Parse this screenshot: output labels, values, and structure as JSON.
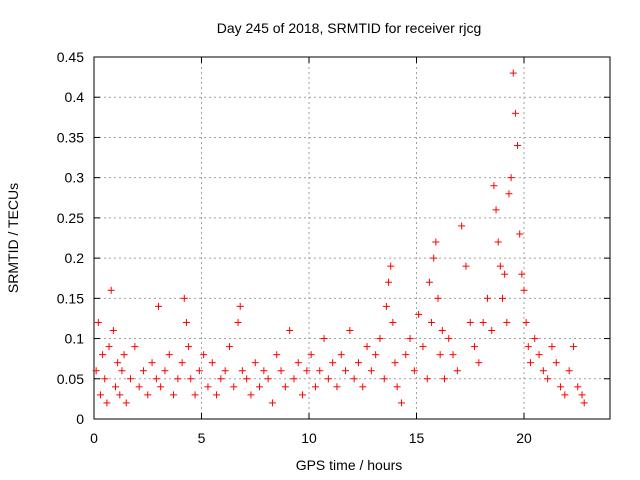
{
  "chart_data": {
    "type": "scatter",
    "title": "Day 245 of 2018, SRMTID for receiver rjcg",
    "xlabel": "GPS time / hours",
    "ylabel": "SRMTID / TECUs",
    "xlim": [
      0,
      24
    ],
    "ylim": [
      0,
      0.45
    ],
    "xticks": [
      0,
      5,
      10,
      15,
      20
    ],
    "xtick_labels": [
      "0",
      "5",
      "10",
      "15",
      "20"
    ],
    "yticks": [
      0,
      0.05,
      0.1,
      0.15,
      0.2,
      0.25,
      0.3,
      0.35,
      0.4,
      0.45
    ],
    "ytick_labels": [
      "0",
      "0.05",
      "0.1",
      "0.15",
      "0.2",
      "0.25",
      "0.3",
      "0.35",
      "0.4",
      "0.45"
    ],
    "grid": true,
    "marker": "+",
    "color": "#ff0000",
    "series": [
      {
        "name": "SRMTID",
        "x": [
          0.1,
          0.2,
          0.3,
          0.4,
          0.5,
          0.6,
          0.7,
          0.8,
          0.9,
          1.0,
          1.1,
          1.2,
          1.3,
          1.4,
          1.5,
          1.7,
          1.9,
          2.1,
          2.3,
          2.5,
          2.7,
          2.9,
          3.0,
          3.1,
          3.3,
          3.5,
          3.7,
          3.9,
          4.1,
          4.2,
          4.3,
          4.4,
          4.5,
          4.7,
          4.9,
          5.1,
          5.3,
          5.5,
          5.7,
          5.9,
          6.1,
          6.3,
          6.5,
          6.7,
          6.8,
          6.9,
          7.1,
          7.3,
          7.5,
          7.7,
          7.9,
          8.1,
          8.3,
          8.5,
          8.7,
          8.9,
          9.1,
          9.3,
          9.5,
          9.7,
          9.9,
          10.1,
          10.3,
          10.5,
          10.7,
          10.9,
          11.1,
          11.3,
          11.5,
          11.7,
          11.9,
          12.1,
          12.3,
          12.5,
          12.7,
          12.9,
          13.1,
          13.3,
          13.5,
          13.6,
          13.7,
          13.8,
          13.9,
          14.0,
          14.1,
          14.3,
          14.5,
          14.7,
          14.9,
          15.1,
          15.3,
          15.5,
          15.6,
          15.7,
          15.8,
          15.9,
          16.0,
          16.1,
          16.2,
          16.3,
          16.5,
          16.7,
          16.9,
          17.1,
          17.3,
          17.5,
          17.7,
          17.9,
          18.1,
          18.3,
          18.5,
          18.6,
          18.7,
          18.8,
          18.9,
          19.0,
          19.1,
          19.2,
          19.3,
          19.4,
          19.5,
          19.6,
          19.7,
          19.8,
          19.9,
          20.0,
          20.1,
          20.2,
          20.3,
          20.5,
          20.7,
          20.9,
          21.1,
          21.3,
          21.5,
          21.7,
          21.9,
          22.1,
          22.3,
          22.5,
          22.7,
          22.8
        ],
        "y": [
          0.06,
          0.12,
          0.03,
          0.08,
          0.05,
          0.02,
          0.09,
          0.16,
          0.11,
          0.04,
          0.07,
          0.03,
          0.06,
          0.08,
          0.02,
          0.05,
          0.09,
          0.04,
          0.06,
          0.03,
          0.07,
          0.05,
          0.14,
          0.04,
          0.06,
          0.08,
          0.03,
          0.05,
          0.07,
          0.15,
          0.12,
          0.09,
          0.05,
          0.03,
          0.06,
          0.08,
          0.04,
          0.07,
          0.03,
          0.05,
          0.06,
          0.09,
          0.04,
          0.12,
          0.14,
          0.06,
          0.05,
          0.03,
          0.07,
          0.04,
          0.06,
          0.05,
          0.02,
          0.08,
          0.06,
          0.04,
          0.11,
          0.05,
          0.07,
          0.03,
          0.06,
          0.08,
          0.04,
          0.06,
          0.1,
          0.05,
          0.07,
          0.04,
          0.08,
          0.06,
          0.11,
          0.05,
          0.07,
          0.04,
          0.09,
          0.06,
          0.08,
          0.1,
          0.05,
          0.14,
          0.17,
          0.19,
          0.12,
          0.07,
          0.04,
          0.02,
          0.08,
          0.1,
          0.06,
          0.13,
          0.09,
          0.05,
          0.17,
          0.12,
          0.2,
          0.22,
          0.15,
          0.08,
          0.11,
          0.05,
          0.1,
          0.08,
          0.06,
          0.24,
          0.19,
          0.12,
          0.09,
          0.07,
          0.12,
          0.15,
          0.11,
          0.29,
          0.26,
          0.22,
          0.19,
          0.15,
          0.18,
          0.12,
          0.28,
          0.3,
          0.43,
          0.38,
          0.34,
          0.23,
          0.18,
          0.16,
          0.12,
          0.09,
          0.07,
          0.1,
          0.08,
          0.06,
          0.05,
          0.09,
          0.07,
          0.04,
          0.03,
          0.06,
          0.09,
          0.04,
          0.03,
          0.02
        ]
      }
    ]
  }
}
